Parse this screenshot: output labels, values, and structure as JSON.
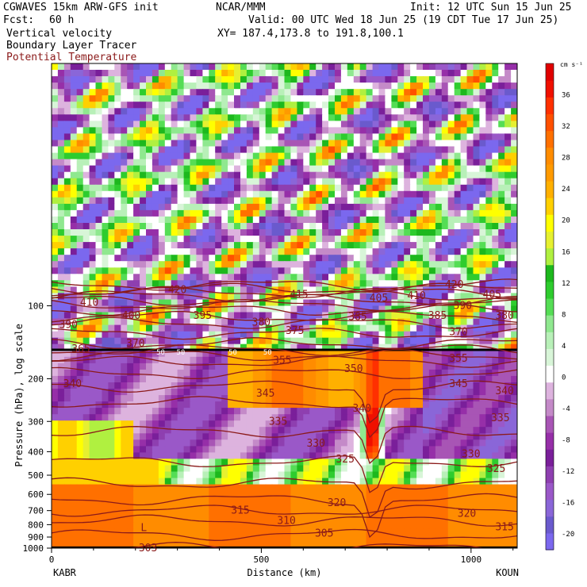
{
  "header": {
    "title": "CGWAVES 15km ARW-GFS init",
    "org": "NCAR/MMM",
    "init": "Init: 12 UTC Sun 15 Jun 25",
    "fcst_label": "Fcst:",
    "fcst_value": "60 h",
    "valid": "Valid: 00 UTC Wed 18 Jun 25 (19 CDT Tue 17 Jun 25)",
    "field1": "Vertical velocity",
    "field2": "Boundary Layer Tracer",
    "field3": "Potential Temperature",
    "xy": "XY= 187.4,173.8 to 191.8,100.1",
    "colors": {
      "field3": "#8b1a1a"
    }
  },
  "chart_data": {
    "type": "heatmap",
    "xlabel": "Distance (km)",
    "ylabel": "Pressure (hPa), log scale",
    "xlim": [
      0,
      1110
    ],
    "ylim": [
      1000,
      10
    ],
    "yscale": "log",
    "x_ticks": [
      0,
      500,
      1000
    ],
    "y_ticks": [
      100,
      200,
      300,
      400,
      500,
      600,
      700,
      800,
      900,
      1000
    ],
    "left_station": "KABR",
    "right_station": "KOUN",
    "colorbar": {
      "unit": "cm s⁻¹",
      "levels": [
        -22,
        -20,
        -18,
        -16,
        -14,
        -12,
        -10,
        -8,
        -6,
        -4,
        -2,
        2,
        4,
        6,
        8,
        10,
        12,
        14,
        16,
        18,
        20,
        22,
        24,
        26,
        28,
        30,
        32,
        34,
        36,
        38,
        40
      ],
      "tick_labels": [
        "36",
        "32",
        "28",
        "24",
        "20",
        "16",
        "12",
        "8",
        "4",
        "0",
        "-4",
        "-8",
        "-12",
        "-16",
        "-20"
      ],
      "tick_values": [
        36,
        32,
        28,
        24,
        20,
        16,
        12,
        8,
        4,
        0,
        -4,
        -8,
        -12,
        -16,
        -20
      ],
      "colors": [
        "#7b68ee",
        "#6a5acd",
        "#8a66d8",
        "#9a58c8",
        "#8e3fb0",
        "#7a1f9a",
        "#962fa8",
        "#a855b5",
        "#c48ac8",
        "#ddb3de",
        "#ffffff",
        "#d8f5d8",
        "#b8f0b8",
        "#8fe88f",
        "#55dd55",
        "#2ecc2e",
        "#1db81d",
        "#b0f040",
        "#e6f030",
        "#ffff00",
        "#ffd000",
        "#ffb000",
        "#ff9a00",
        "#ff8c00",
        "#ff7000",
        "#ff5000",
        "#ff3000",
        "#f01000",
        "#e00000"
      ]
    },
    "theta_contours": {
      "values": [
        303,
        305,
        310,
        315,
        320,
        325,
        330,
        335,
        340,
        345,
        350,
        355,
        360,
        365,
        370,
        375,
        380,
        385,
        390,
        395,
        400,
        405,
        410,
        415,
        420
      ],
      "color": "#8b1a1a"
    },
    "theta_labels": [
      {
        "text": "303",
        "x": 230,
        "p": 1000
      },
      {
        "text": "305",
        "x": 650,
        "p": 870
      },
      {
        "text": "310",
        "x": 560,
        "p": 770
      },
      {
        "text": "315",
        "x": 450,
        "p": 700
      },
      {
        "text": "315",
        "x": 1080,
        "p": 820
      },
      {
        "text": "320",
        "x": 680,
        "p": 650
      },
      {
        "text": "320",
        "x": 990,
        "p": 720
      },
      {
        "text": "325",
        "x": 700,
        "p": 430
      },
      {
        "text": "325",
        "x": 1060,
        "p": 470
      },
      {
        "text": "330",
        "x": 630,
        "p": 370
      },
      {
        "text": "330",
        "x": 1000,
        "p": 410
      },
      {
        "text": "335",
        "x": 540,
        "p": 300
      },
      {
        "text": "335",
        "x": 1070,
        "p": 290
      },
      {
        "text": "340",
        "x": 50,
        "p": 210
      },
      {
        "text": "340",
        "x": 740,
        "p": 265
      },
      {
        "text": "340",
        "x": 1080,
        "p": 225
      },
      {
        "text": "345",
        "x": 510,
        "p": 230
      },
      {
        "text": "345",
        "x": 970,
        "p": 210
      },
      {
        "text": "350",
        "x": 720,
        "p": 182
      },
      {
        "text": "355",
        "x": 550,
        "p": 168
      },
      {
        "text": "355",
        "x": 970,
        "p": 165
      },
      {
        "text": "365",
        "x": 70,
        "p": 151
      },
      {
        "text": "370",
        "x": 200,
        "p": 143
      },
      {
        "text": "370",
        "x": 970,
        "p": 128
      },
      {
        "text": "375",
        "x": 580,
        "p": 127
      },
      {
        "text": "380",
        "x": 500,
        "p": 117
      },
      {
        "text": "380",
        "x": 1080,
        "p": 110
      },
      {
        "text": "385",
        "x": 730,
        "p": 111
      },
      {
        "text": "385",
        "x": 920,
        "p": 110
      },
      {
        "text": "390",
        "x": 40,
        "p": 120
      },
      {
        "text": "390",
        "x": 980,
        "p": 100
      },
      {
        "text": "395",
        "x": 360,
        "p": 110
      },
      {
        "text": "400",
        "x": 190,
        "p": 110
      },
      {
        "text": "405",
        "x": 780,
        "p": 93
      },
      {
        "text": "405",
        "x": 1050,
        "p": 90
      },
      {
        "text": "410",
        "x": 90,
        "p": 97
      },
      {
        "text": "410",
        "x": 870,
        "p": 91
      },
      {
        "text": "415",
        "x": 590,
        "p": 90
      },
      {
        "text": "420",
        "x": 300,
        "p": 86
      },
      {
        "text": "420",
        "x": 960,
        "p": 82
      }
    ],
    "tracer_boundary_labels": [
      "50",
      "50",
      "50",
      "50"
    ],
    "pressure_labels": [
      "100",
      "200",
      "300",
      "400",
      "500",
      "600",
      "700",
      "800",
      "900",
      "1000"
    ],
    "annotation": "L"
  }
}
